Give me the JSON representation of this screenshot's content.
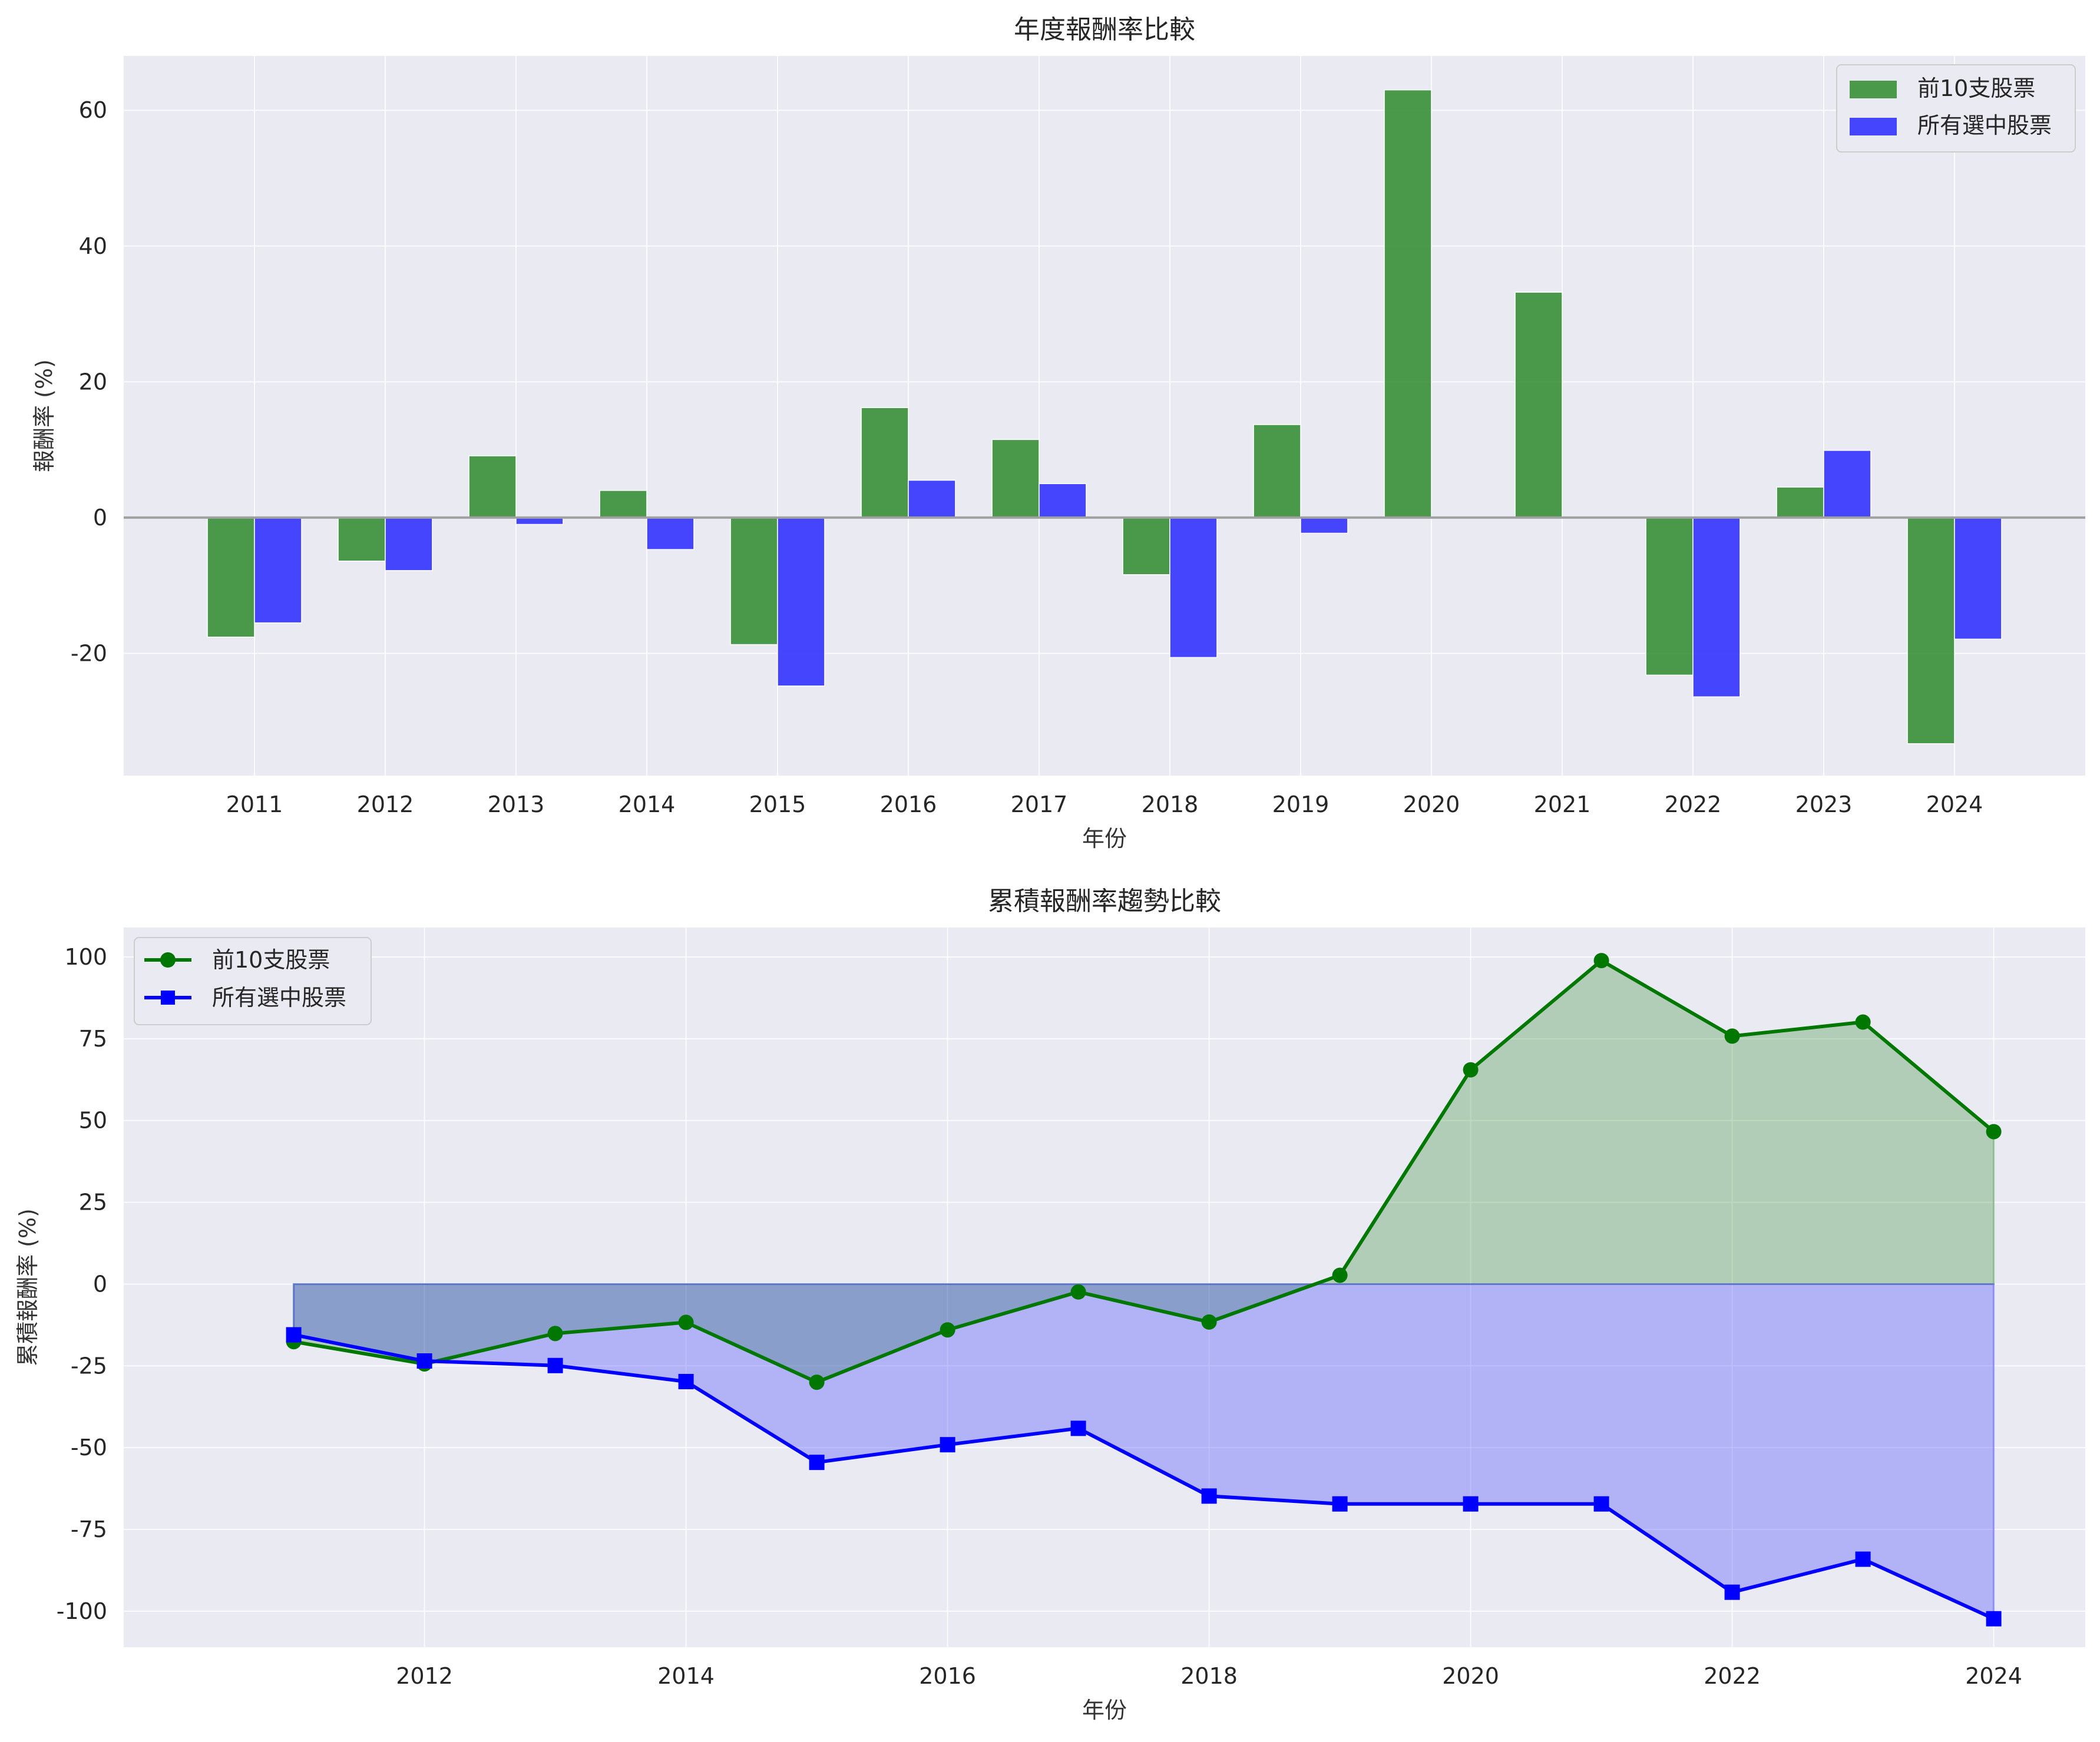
{
  "chart_data": [
    {
      "type": "bar",
      "title": "年度報酬率比較",
      "xlabel": "年份",
      "ylabel": "報酬率 (%)",
      "categories": [
        "2011",
        "2012",
        "2013",
        "2014",
        "2015",
        "2016",
        "2017",
        "2018",
        "2019",
        "2020",
        "2021",
        "2022",
        "2023",
        "2024"
      ],
      "series": [
        {
          "name": "前10支股票",
          "color": "#2e8b2e",
          "values": [
            -17.6,
            -6.4,
            9.1,
            4.0,
            -18.7,
            16.2,
            11.5,
            -8.4,
            13.7,
            63.0,
            33.2,
            -23.2,
            4.5,
            -33.3
          ]
        },
        {
          "name": "所有選中股票",
          "color": "#3333ff",
          "values": [
            -15.5,
            -7.8,
            -1.0,
            -4.7,
            -24.8,
            5.5,
            5.0,
            -20.6,
            -2.3,
            0,
            0,
            -26.4,
            9.9,
            -17.9
          ]
        }
      ],
      "ylim": [
        -38,
        68
      ],
      "yticks": [
        -20,
        0,
        20,
        40,
        60
      ],
      "grid": true,
      "legend": "top-right"
    },
    {
      "type": "line",
      "title": "累積報酬率趨勢比較",
      "xlabel": "年份",
      "ylabel": "累積報酬率 (%)",
      "x": [
        2011,
        2012,
        2013,
        2014,
        2015,
        2016,
        2017,
        2018,
        2019,
        2020,
        2021,
        2022,
        2023,
        2024
      ],
      "series": [
        {
          "name": "前10支股票",
          "color": "#007700",
          "marker": "circle",
          "values": [
            -17.6,
            -24.4,
            -15.1,
            -11.7,
            -30.0,
            -14.0,
            -2.4,
            -11.6,
            2.7,
            65.5,
            98.9,
            75.8,
            80.1,
            46.6
          ]
        },
        {
          "name": "所有選中股票",
          "color": "#0000ff",
          "marker": "square",
          "values": [
            -15.5,
            -23.5,
            -24.9,
            -29.8,
            -54.5,
            -49.1,
            -44.1,
            -64.8,
            -67.2,
            -67.2,
            -67.2,
            -94.2,
            -84.1,
            -102.3
          ]
        }
      ],
      "xticks": [
        2012,
        2014,
        2016,
        2018,
        2020,
        2022,
        2024
      ],
      "yticks": [
        -100,
        -75,
        -50,
        -25,
        0,
        25,
        50,
        75,
        100
      ],
      "xlim": [
        2009.7,
        2024.7
      ],
      "ylim": [
        -111,
        109
      ],
      "grid": true,
      "legend": "top-left"
    }
  ]
}
